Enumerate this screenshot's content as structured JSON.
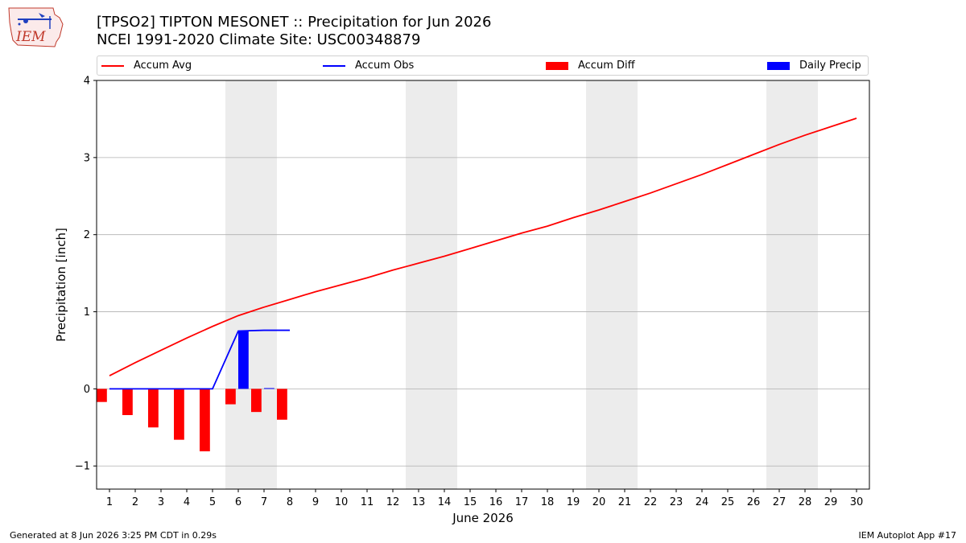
{
  "header": {
    "title_line1": "[TPSO2] TIPTON MESONET :: Precipitation for Jun 2026",
    "title_line2": "NCEI 1991-2020 Climate Site: USC00348879",
    "logo_text": "IEM"
  },
  "footer": {
    "generated": "Generated at 8 Jun 2026 3:25 PM CDT in 0.29s",
    "app": "IEM Autoplot App #17"
  },
  "chart_data": {
    "type": "bar",
    "xlabel": "June 2026",
    "ylabel": "Precipitation [inch]",
    "xlim": [
      0.5,
      30.5
    ],
    "ylim": [
      -1.3,
      4.0
    ],
    "yticks": [
      -1,
      0,
      1,
      2,
      3,
      4
    ],
    "ytick_labels": [
      "−1",
      "0",
      "1",
      "2",
      "3",
      "4"
    ],
    "days": [
      1,
      2,
      3,
      4,
      5,
      6,
      7,
      8,
      9,
      10,
      11,
      12,
      13,
      14,
      15,
      16,
      17,
      18,
      19,
      20,
      21,
      22,
      23,
      24,
      25,
      26,
      27,
      28,
      29,
      30
    ],
    "weekend_shading": [
      [
        5.5,
        7.5
      ],
      [
        12.5,
        14.5
      ],
      [
        19.5,
        21.5
      ],
      [
        26.5,
        28.5
      ]
    ],
    "grid": "horizontal",
    "legend_position": "top",
    "colors": {
      "avg": "#ff0000",
      "obs": "#0000ff",
      "diff": "#ff0000",
      "daily": "#0000ff",
      "shade": "#ececec",
      "grid": "#b0b0b0"
    },
    "series": [
      {
        "name": "Accum Avg",
        "kind": "line",
        "values": [
          0.17,
          0.34,
          0.5,
          0.66,
          0.81,
          0.95,
          1.06,
          1.16,
          1.26,
          1.35,
          1.44,
          1.54,
          1.63,
          1.72,
          1.82,
          1.92,
          2.02,
          2.11,
          2.22,
          2.32,
          2.43,
          2.54,
          2.66,
          2.78,
          2.91,
          3.04,
          3.17,
          3.29,
          3.4,
          3.51
        ]
      },
      {
        "name": "Accum Obs",
        "kind": "line",
        "values": [
          0,
          0,
          0,
          0,
          0,
          0.75,
          0.76,
          0.76
        ]
      },
      {
        "name": "Accum Diff",
        "kind": "bar",
        "values": [
          -0.17,
          -0.34,
          -0.5,
          -0.66,
          -0.81,
          -0.2,
          -0.3,
          -0.4
        ]
      },
      {
        "name": "Daily Precip",
        "kind": "bar",
        "values": [
          0,
          0,
          0,
          0,
          0,
          0.75,
          0.01,
          0
        ]
      }
    ]
  }
}
